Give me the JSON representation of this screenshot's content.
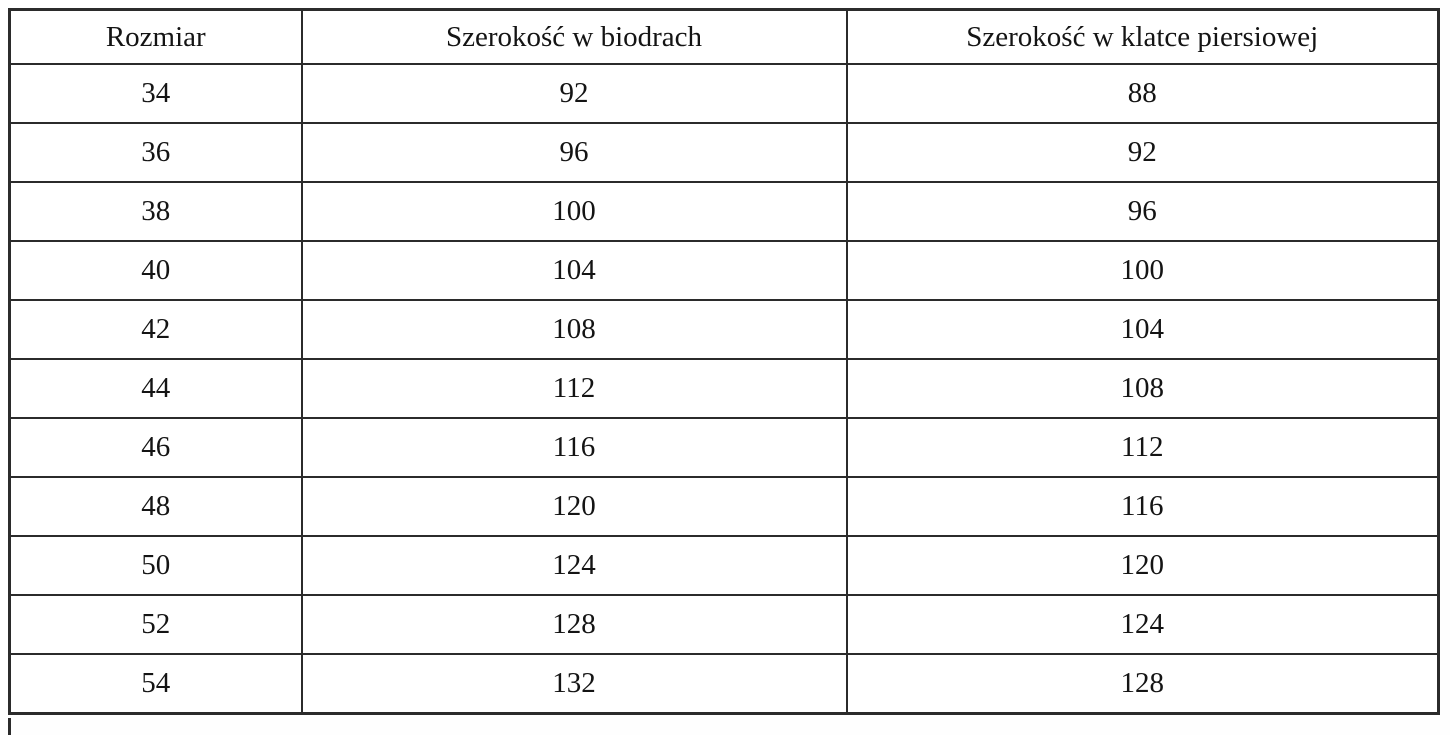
{
  "table": {
    "headers": [
      "Rozmiar",
      "Szerokość w biodrach",
      "Szerokość w klatce piersiowej"
    ],
    "rows": [
      [
        "34",
        "92",
        "88"
      ],
      [
        "36",
        "96",
        "92"
      ],
      [
        "38",
        "100",
        "96"
      ],
      [
        "40",
        "104",
        "100"
      ],
      [
        "42",
        "108",
        "104"
      ],
      [
        "44",
        "112",
        "108"
      ],
      [
        "46",
        "116",
        "112"
      ],
      [
        "48",
        "120",
        "116"
      ],
      [
        "50",
        "124",
        "120"
      ],
      [
        "52",
        "128",
        "124"
      ],
      [
        "54",
        "132",
        "128"
      ]
    ]
  },
  "colors": {
    "border": "#2b2b2b",
    "background": "#ffffff",
    "text": "#141414"
  }
}
